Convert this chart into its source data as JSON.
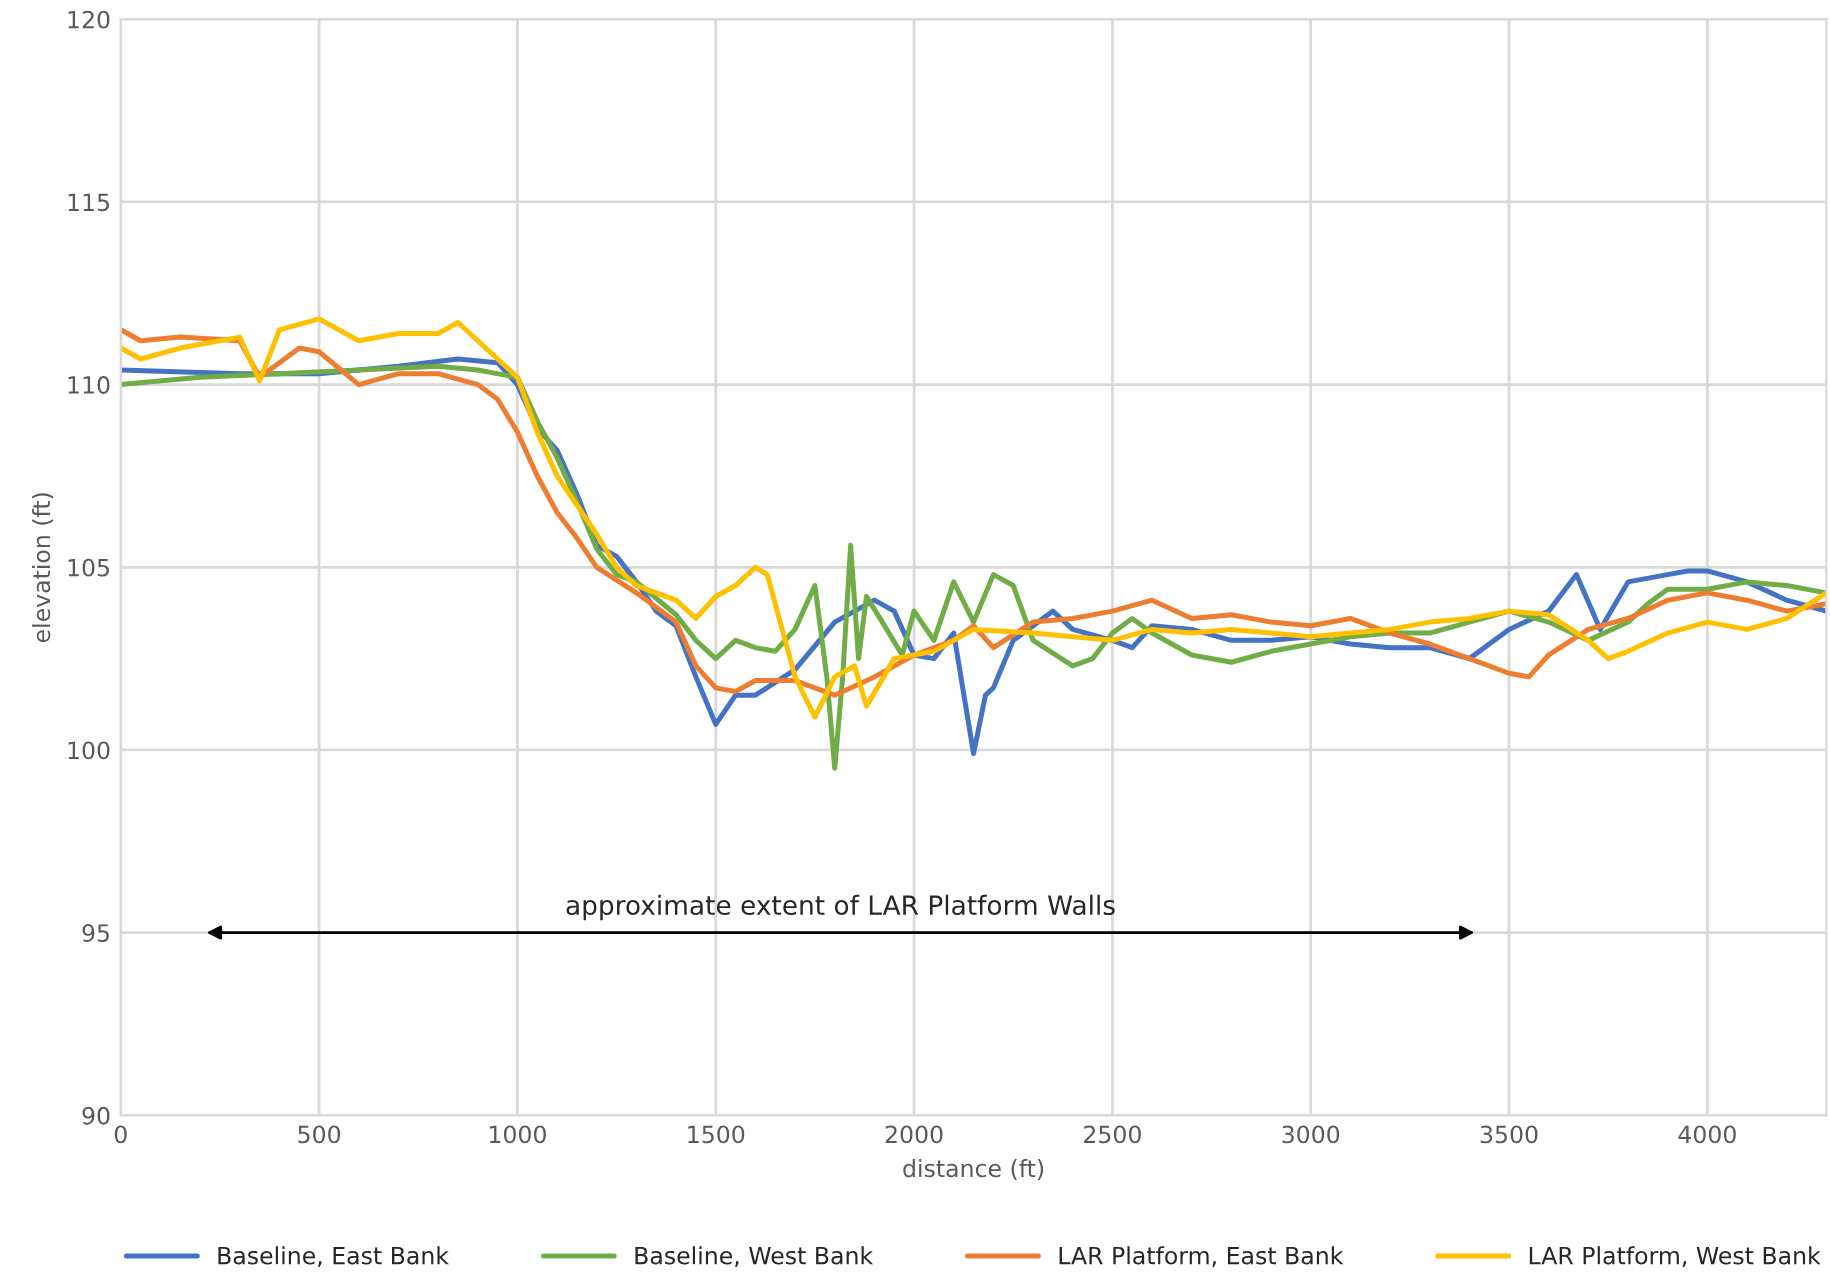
{
  "chart_data": {
    "type": "line",
    "xlabel": "distance (ft)",
    "ylabel": "elevation (ft)",
    "xlim": [
      0,
      4300
    ],
    "xticks": [
      0,
      500,
      1000,
      1500,
      2000,
      2500,
      3000,
      3500,
      4000
    ],
    "ylim": [
      90,
      120
    ],
    "yticks": [
      90,
      95,
      100,
      105,
      110,
      115,
      120
    ],
    "grid": true,
    "legend": "bottom",
    "marker": "none",
    "line_style": "solid",
    "annotations": [
      "approximate extent of LAR Platform Walls"
    ],
    "series": [
      {
        "name": "Baseline, East Bank",
        "color": "#4472c4",
        "x": [
          0,
          300,
          500,
          700,
          850,
          950,
          1000,
          1050,
          1100,
          1150,
          1200,
          1250,
          1300,
          1350,
          1400,
          1450,
          1500,
          1550,
          1600,
          1700,
          1800,
          1900,
          1950,
          2000,
          2050,
          2100,
          2150,
          2180,
          2200,
          2250,
          2350,
          2400,
          2500,
          2550,
          2600,
          2700,
          2800,
          2900,
          3000,
          3100,
          3200,
          3300,
          3400,
          3500,
          3600,
          3670,
          3730,
          3800,
          3900,
          3950,
          4000,
          4100,
          4200,
          4300
        ],
        "values": [
          110.4,
          110.3,
          110.3,
          110.5,
          110.7,
          110.6,
          110.0,
          108.8,
          108.2,
          107.0,
          105.6,
          105.3,
          104.6,
          103.8,
          103.4,
          102.0,
          100.7,
          101.5,
          101.5,
          102.2,
          103.5,
          104.1,
          103.8,
          102.6,
          102.5,
          103.2,
          99.9,
          101.5,
          101.7,
          103.0,
          103.8,
          103.3,
          103.0,
          102.8,
          103.4,
          103.3,
          103.0,
          103.0,
          103.1,
          102.9,
          102.8,
          102.8,
          102.5,
          103.3,
          103.8,
          104.8,
          103.3,
          104.6,
          104.8,
          104.9,
          104.9,
          104.6,
          104.1,
          103.8
        ]
      },
      {
        "name": "Baseline, West Bank",
        "color": "#70ad47",
        "x": [
          0,
          200,
          400,
          600,
          800,
          900,
          1000,
          1050,
          1100,
          1150,
          1200,
          1250,
          1300,
          1400,
          1450,
          1500,
          1550,
          1600,
          1650,
          1700,
          1750,
          1780,
          1800,
          1820,
          1840,
          1860,
          1880,
          1920,
          1970,
          2000,
          2050,
          2100,
          2150,
          2200,
          2250,
          2300,
          2400,
          2450,
          2500,
          2550,
          2600,
          2650,
          2700,
          2800,
          2900,
          3000,
          3100,
          3200,
          3300,
          3400,
          3500,
          3600,
          3700,
          3800,
          3850,
          3900,
          4000,
          4100,
          4200,
          4300
        ],
        "values": [
          110.0,
          110.2,
          110.3,
          110.4,
          110.5,
          110.4,
          110.2,
          109.0,
          108.0,
          106.8,
          105.5,
          104.8,
          104.6,
          103.7,
          103.0,
          102.5,
          103.0,
          102.8,
          102.7,
          103.3,
          104.5,
          102.0,
          99.5,
          102.0,
          105.6,
          102.5,
          104.2,
          103.5,
          102.6,
          103.8,
          103.0,
          104.6,
          103.5,
          104.8,
          104.5,
          103.0,
          102.3,
          102.5,
          103.2,
          103.6,
          103.2,
          102.9,
          102.6,
          102.4,
          102.7,
          102.9,
          103.1,
          103.2,
          103.2,
          103.5,
          103.8,
          103.5,
          103.0,
          103.5,
          104.0,
          104.4,
          104.4,
          104.6,
          104.5,
          104.3
        ]
      },
      {
        "name": "LAR Platform, East Bank",
        "color": "#ed7d31",
        "x": [
          0,
          50,
          150,
          300,
          350,
          400,
          450,
          500,
          600,
          700,
          800,
          900,
          950,
          1000,
          1050,
          1100,
          1150,
          1200,
          1300,
          1400,
          1450,
          1500,
          1550,
          1600,
          1700,
          1800,
          1900,
          2000,
          2100,
          2150,
          2200,
          2300,
          2400,
          2500,
          2600,
          2700,
          2800,
          2900,
          3000,
          3100,
          3200,
          3300,
          3400,
          3500,
          3550,
          3600,
          3700,
          3800,
          3900,
          4000,
          4100,
          4200,
          4300
        ],
        "values": [
          111.5,
          111.2,
          111.3,
          111.2,
          110.2,
          110.6,
          111.0,
          110.9,
          110.0,
          110.3,
          110.3,
          110.0,
          109.6,
          108.7,
          107.5,
          106.5,
          105.8,
          105.0,
          104.3,
          103.5,
          102.3,
          101.7,
          101.6,
          101.9,
          101.9,
          101.5,
          102.0,
          102.6,
          103.0,
          103.4,
          102.8,
          103.5,
          103.6,
          103.8,
          104.1,
          103.6,
          103.7,
          103.5,
          103.4,
          103.6,
          103.2,
          102.9,
          102.5,
          102.1,
          102.0,
          102.6,
          103.3,
          103.6,
          104.1,
          104.3,
          104.1,
          103.8,
          104.0
        ]
      },
      {
        "name": "LAR Platform, West Bank",
        "color": "#ffc000",
        "x": [
          0,
          50,
          150,
          300,
          350,
          400,
          500,
          600,
          700,
          800,
          850,
          900,
          1000,
          1050,
          1100,
          1200,
          1250,
          1300,
          1400,
          1450,
          1500,
          1550,
          1600,
          1630,
          1700,
          1750,
          1800,
          1850,
          1880,
          1950,
          2050,
          2150,
          2300,
          2400,
          2500,
          2600,
          2700,
          2800,
          2900,
          3000,
          3100,
          3200,
          3300,
          3400,
          3500,
          3600,
          3700,
          3750,
          3800,
          3900,
          4000,
          4100,
          4200,
          4300
        ],
        "values": [
          111.0,
          110.7,
          111.0,
          111.3,
          110.1,
          111.5,
          111.8,
          111.2,
          111.4,
          111.4,
          111.7,
          111.2,
          110.2,
          108.7,
          107.5,
          105.9,
          105.0,
          104.5,
          104.1,
          103.6,
          104.2,
          104.5,
          105.0,
          104.8,
          102.0,
          100.9,
          102.0,
          102.3,
          101.2,
          102.5,
          102.7,
          103.3,
          103.2,
          103.1,
          103.0,
          103.3,
          103.2,
          103.3,
          103.2,
          103.1,
          103.2,
          103.3,
          103.5,
          103.6,
          103.8,
          103.7,
          103.0,
          102.5,
          102.7,
          103.2,
          103.5,
          103.3,
          103.6,
          104.3
        ]
      }
    ]
  }
}
